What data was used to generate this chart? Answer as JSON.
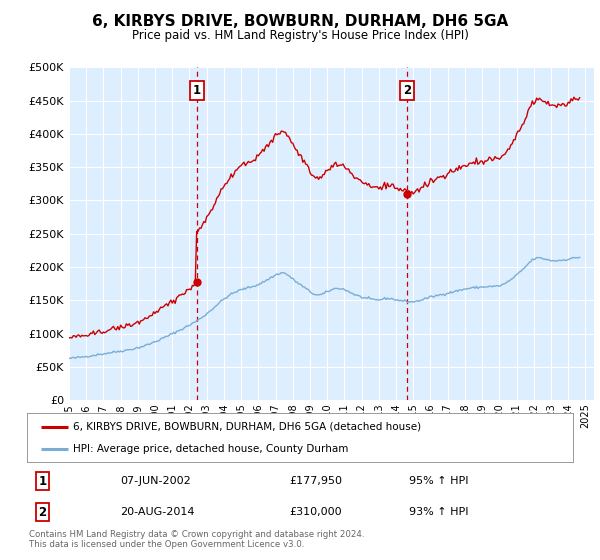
{
  "title": "6, KIRBYS DRIVE, BOWBURN, DURHAM, DH6 5GA",
  "subtitle": "Price paid vs. HM Land Registry's House Price Index (HPI)",
  "legend_line1": "6, KIRBYS DRIVE, BOWBURN, DURHAM, DH6 5GA (detached house)",
  "legend_line2": "HPI: Average price, detached house, County Durham",
  "annotation1_date": "07-JUN-2002",
  "annotation1_price": "£177,950",
  "annotation1_hpi": "95% ↑ HPI",
  "annotation2_date": "20-AUG-2014",
  "annotation2_price": "£310,000",
  "annotation2_hpi": "93% ↑ HPI",
  "footnote1": "Contains HM Land Registry data © Crown copyright and database right 2024.",
  "footnote2": "This data is licensed under the Open Government Licence v3.0.",
  "red_color": "#cc0000",
  "blue_color": "#7aadd4",
  "background_color": "#ddeeff",
  "ylim": [
    0,
    500000
  ],
  "xlim_start": 1995.0,
  "xlim_end": 2025.5,
  "sale1_x": 2002.44,
  "sale1_y": 177950,
  "sale2_x": 2014.63,
  "sale2_y": 310000
}
